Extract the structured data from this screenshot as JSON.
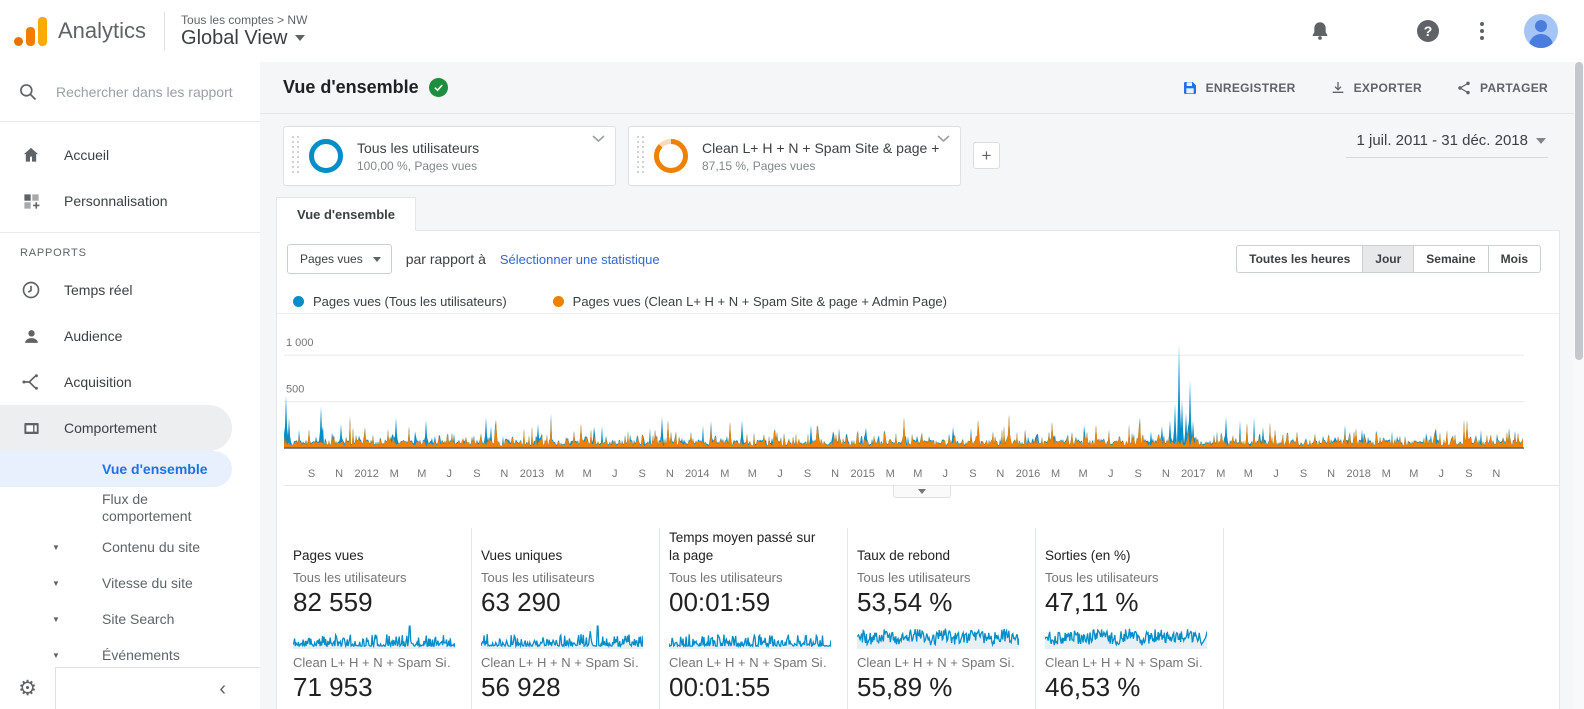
{
  "header": {
    "brand": "Analytics",
    "breadcrumb": "Tous les comptes > NW",
    "account": "Global View"
  },
  "sidebar": {
    "search_placeholder": "Rechercher dans les rapport",
    "section_label": "RAPPORTS",
    "items": {
      "home": "Accueil",
      "customization": "Personnalisation",
      "realtime": "Temps réel",
      "audience": "Audience",
      "acquisition": "Acquisition",
      "behavior": "Comportement",
      "overview": "Vue d'ensemble",
      "behavior_flow": "Flux de comportement",
      "site_content": "Contenu du site",
      "site_speed": "Vitesse du site",
      "site_search": "Site Search",
      "events": "Événements"
    }
  },
  "report": {
    "title": "Vue d'ensemble",
    "save_label": "ENREGISTRER",
    "export_label": "EXPORTER",
    "share_label": "PARTAGER",
    "tab_label": "Vue d'ensemble",
    "date_range": "1 juil. 2011 - 31 déc. 2018",
    "add_segment_label": "+"
  },
  "segments": [
    {
      "name": "Tous les utilisateurs",
      "detail": "100,00 %, Pages vues",
      "percent": 100,
      "color": "#058dc7",
      "rest_color": "#cfe7f4"
    },
    {
      "name": "Clean L+ H + N + Spam Site & page + …",
      "detail": "87,15 %, Pages vues",
      "percent": 87.15,
      "color": "#ee8100",
      "rest_color": "#f8ddbd"
    }
  ],
  "controls": {
    "metric_select": "Pages vues",
    "vs_label": "par rapport à",
    "stat_link": "Sélectionner une statistique",
    "granularity": [
      "Toutes les heures",
      "Jour",
      "Semaine",
      "Mois"
    ],
    "active_granularity": "Jour"
  },
  "chart_data": {
    "type": "line",
    "title": "Pages vues par jour, 1 juil. 2011 - 31 déc. 2018",
    "xlabel": "",
    "ylabel": "Pages vues",
    "ylim": [
      0,
      1400
    ],
    "y_ticks": [
      {
        "value": 500,
        "label": "500"
      },
      {
        "value": 1000,
        "label": "1 000"
      }
    ],
    "x_ticks": [
      "S",
      "N",
      "2012",
      "M",
      "M",
      "J",
      "S",
      "N",
      "2013",
      "M",
      "M",
      "J",
      "S",
      "N",
      "2014",
      "M",
      "M",
      "J",
      "S",
      "N",
      "2015",
      "M",
      "M",
      "J",
      "S",
      "N",
      "2016",
      "M",
      "M",
      "J",
      "S",
      "N",
      "2017",
      "M",
      "M",
      "J",
      "S",
      "N",
      "2018",
      "M",
      "M",
      "J",
      "S",
      "N"
    ],
    "x_tick_month_start": 2,
    "x_tick_month_step": 2,
    "total_months": 90,
    "series": [
      {
        "name": "Pages vues (Tous les utilisateurs)",
        "color": "#058dc7",
        "typical_daily_range": [
          20,
          220
        ],
        "peak": 1120
      },
      {
        "name": "Pages vues (Clean L+ H + N + Spam Site & page + Admin Page)",
        "color": "#ee8100",
        "typical_daily_range": [
          15,
          200
        ],
        "peak": 360
      }
    ],
    "blue_spikes": [
      [
        0.0015,
        570
      ],
      [
        0.004,
        330
      ],
      [
        0.03,
        450
      ],
      [
        0.046,
        260
      ],
      [
        0.09,
        330
      ],
      [
        0.115,
        300
      ],
      [
        0.163,
        330
      ],
      [
        0.205,
        260
      ],
      [
        0.25,
        230
      ],
      [
        0.305,
        340
      ],
      [
        0.345,
        290
      ],
      [
        0.37,
        300
      ],
      [
        0.425,
        250
      ],
      [
        0.47,
        220
      ],
      [
        0.54,
        230
      ],
      [
        0.7,
        180
      ],
      [
        0.709,
        240
      ],
      [
        0.715,
        300
      ],
      [
        0.719,
        480
      ],
      [
        0.722,
        1120
      ],
      [
        0.725,
        520
      ],
      [
        0.728,
        380
      ],
      [
        0.731,
        730
      ],
      [
        0.734,
        300
      ],
      [
        0.76,
        340
      ],
      [
        0.79,
        230
      ],
      [
        0.87,
        200
      ],
      [
        0.93,
        210
      ]
    ],
    "orange_spikes": [
      [
        0.02,
        200
      ],
      [
        0.065,
        220
      ],
      [
        0.171,
        300
      ],
      [
        0.24,
        260
      ],
      [
        0.31,
        300
      ],
      [
        0.36,
        280
      ],
      [
        0.43,
        240
      ],
      [
        0.5,
        330
      ],
      [
        0.56,
        300
      ],
      [
        0.585,
        360
      ],
      [
        0.62,
        280
      ],
      [
        0.655,
        250
      ],
      [
        0.69,
        240
      ],
      [
        0.73,
        220
      ],
      [
        0.8,
        200
      ],
      [
        0.865,
        210
      ],
      [
        0.955,
        300
      ]
    ]
  },
  "metrics": {
    "cards": [
      {
        "title": "Pages vues",
        "seg1_label": "Tous les utilisateurs",
        "seg1_value": "82 559",
        "seg2_label": "Clean L+ H + N + Spam Si…",
        "seg2_value": "71 953",
        "spark_kind": "spiky",
        "big_spike": true
      },
      {
        "title": "Vues uniques",
        "seg1_label": "Tous les utilisateurs",
        "seg1_value": "63 290",
        "seg2_label": "Clean L+ H + N + Spam Si…",
        "seg2_value": "56 928",
        "spark_kind": "spiky",
        "big_spike": true
      },
      {
        "title": "Temps moyen passé sur la page",
        "seg1_label": "Tous les utilisateurs",
        "seg1_value": "00:01:59",
        "seg2_label": "Clean L+ H + N + Spam Si…",
        "seg2_value": "00:01:55",
        "spark_kind": "spiky",
        "big_spike": false
      },
      {
        "title": "Taux de rebond",
        "seg1_label": "Tous les utilisateurs",
        "seg1_value": "53,54 %",
        "seg2_label": "Clean L+ H + N + Spam Si…",
        "seg2_value": "55,89 %",
        "spark_kind": "band",
        "big_spike": false
      },
      {
        "title": "Sorties (en %)",
        "seg1_label": "Tous les utilisateurs",
        "seg1_value": "47,11 %",
        "seg2_label": "Clean L+ H + N + Spam Si…",
        "seg2_value": "46,53 %",
        "spark_kind": "band",
        "big_spike": false
      }
    ]
  },
  "colors": {
    "blue": "#058dc7",
    "orange": "#ee8100",
    "spark_fill": "#e7eff6",
    "link": "#3367d6",
    "save_icon": "#1a73e8"
  }
}
